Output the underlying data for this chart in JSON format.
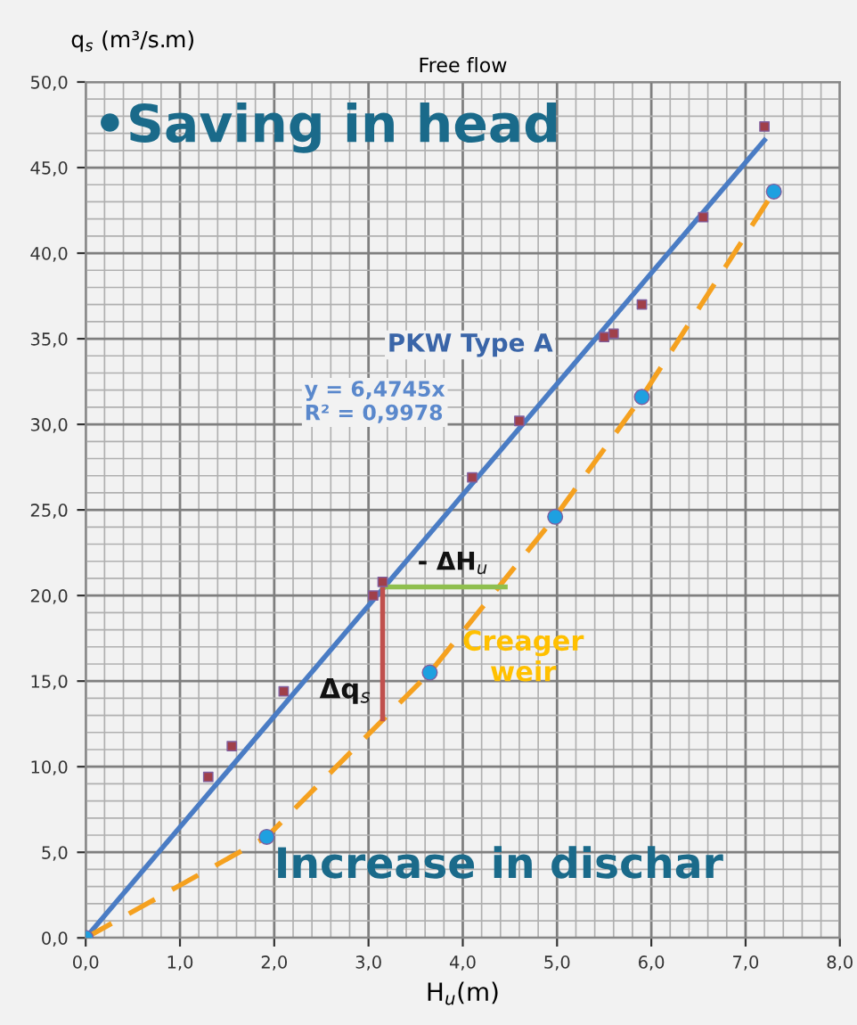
{
  "chart_data": {
    "type": "scatter",
    "title": "Free flow",
    "xlabel": "H$_{u}$(m)",
    "ylabel": "q$_{s}$ (m³/s.m)",
    "xlim": [
      0,
      8
    ],
    "ylim": [
      0,
      50
    ],
    "xticks": [
      {
        "value": 0,
        "label": "0,0"
      },
      {
        "value": 1,
        "label": "1,0"
      },
      {
        "value": 2,
        "label": "2,0"
      },
      {
        "value": 3,
        "label": "3,0"
      },
      {
        "value": 4,
        "label": "4,0"
      },
      {
        "value": 5,
        "label": "5,0"
      },
      {
        "value": 6,
        "label": "6,0"
      },
      {
        "value": 7,
        "label": "7,0"
      },
      {
        "value": 8,
        "label": "8,0"
      }
    ],
    "yticks": [
      {
        "value": 0,
        "label": "0,0"
      },
      {
        "value": 5,
        "label": "5,0"
      },
      {
        "value": 10,
        "label": "10,0"
      },
      {
        "value": 15,
        "label": "15,0"
      },
      {
        "value": 20,
        "label": "20,0"
      },
      {
        "value": 25,
        "label": "25,0"
      },
      {
        "value": 30,
        "label": "30,0"
      },
      {
        "value": 35,
        "label": "35,0"
      },
      {
        "value": 40,
        "label": "40,0"
      },
      {
        "value": 45,
        "label": "45,0"
      },
      {
        "value": 50,
        "label": "50,0"
      }
    ],
    "grid": true,
    "series": [
      {
        "type": "line",
        "color": "#4a7cc4",
        "line_style": "solid",
        "marker": "none",
        "x": [
          0,
          7.2
        ],
        "values": [
          0,
          46.6
        ]
      },
      {
        "type": "line",
        "color": "#f5a11f",
        "line_style": "dashed",
        "marker": "none",
        "x": [
          0,
          1.92,
          3.65,
          4.98,
          5.9,
          7.3
        ],
        "values": [
          0,
          5.9,
          15.5,
          24.6,
          31.6,
          43.6
        ]
      },
      {
        "color": "#a0404a",
        "marker": "square",
        "x": [
          0,
          1.3,
          1.55,
          2.1,
          3.05,
          3.15,
          4.1,
          4.6,
          5.5,
          5.6,
          5.9,
          6.55,
          7.2
        ],
        "values": [
          0,
          9.4,
          11.2,
          14.4,
          20,
          20.8,
          26.9,
          30.2,
          35.1,
          35.3,
          37,
          42.1,
          47.4
        ]
      },
      {
        "color": "#1ea0e0",
        "marker": "circle",
        "x": [
          0,
          1.92,
          3.65,
          4.98,
          5.9,
          7.3
        ],
        "values": [
          0,
          5.9,
          15.5,
          24.6,
          31.6,
          43.6
        ]
      },
      {
        "type": "line",
        "color": "#8fbf4f",
        "line_style": "solid",
        "marker": "none",
        "x": [
          3.15,
          4.45
        ],
        "values": [
          20.5,
          20.5
        ]
      },
      {
        "type": "line",
        "color": "#c0504d",
        "line_style": "solid",
        "marker": "none",
        "x": [
          3.15,
          3.15
        ],
        "values": [
          20.5,
          12.8
        ]
      }
    ],
    "annotations": [
      "•Saving in head",
      "PKW Type A",
      "y = 6,4745x\nR² = 0,9978",
      "- ΔH$_{u}$",
      "Δq$_{s}$",
      "Creager\nweir",
      "Increase in dischar"
    ]
  }
}
